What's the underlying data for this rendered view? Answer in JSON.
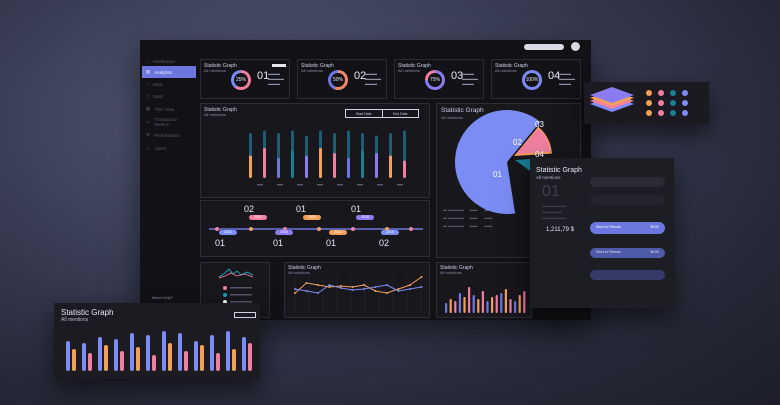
{
  "sidebar": {
    "items": [
      {
        "label": "Dashboard"
      },
      {
        "label": "Analytics"
      },
      {
        "label": "Data"
      },
      {
        "label": "Stats"
      },
      {
        "label": "TOP View"
      },
      {
        "label": "Transaction Metrics"
      },
      {
        "label": "Performance"
      },
      {
        "label": "Users"
      }
    ],
    "footer": "Need Help?"
  },
  "stat_cards": [
    {
      "title": "Statistic Graph",
      "sub": "All mentions",
      "percent": "25%",
      "num": "01",
      "color": "#f07fa0"
    },
    {
      "title": "Statistic Graph",
      "sub": "All mentions",
      "percent": "50%",
      "num": "02",
      "color": "#ef8a6a"
    },
    {
      "title": "Statistic Graph",
      "sub": "All mentions",
      "percent": "75%",
      "num": "03",
      "color": "#8a7cf0"
    },
    {
      "title": "Statistic Graph",
      "sub": "All mentions",
      "percent": "100%",
      "num": "04",
      "color": "#7b8cf5"
    }
  ],
  "bar_panel": {
    "title": "Statistic Graph",
    "sub": "All mentions",
    "btn_start": "Start Date",
    "btn_end": "End Date"
  },
  "timeline": {
    "top": [
      "02",
      "01",
      "01"
    ],
    "bottom": [
      "01",
      "01",
      "01",
      "02"
    ],
    "chips_top": [
      "2022",
      "2020",
      "2018"
    ],
    "chips_bottom": [
      "2024",
      "2016",
      "2014",
      "2010"
    ]
  },
  "pie_panel": {
    "title": "Statistic Graph",
    "sub": "All mentions",
    "labels": [
      "01",
      "02",
      "03",
      "04"
    ]
  },
  "line_panel": {
    "title": "Statistic Graph",
    "sub": "All mentions"
  },
  "small_bar_panel": {
    "title": "Statistic Graph",
    "sub": "All mentions"
  },
  "float_left": {
    "title": "Statistic Graph",
    "sub": "All mentions"
  },
  "float_right": {
    "title": "Statistic Graph",
    "sub": "All mentions",
    "big": "01",
    "amount": "1,211,79 $",
    "rows": [
      {
        "label": "",
        "value": ""
      },
      {
        "label": "Send to Friends",
        "value": "38.00"
      },
      {
        "label": "Send to Friends",
        "value": "38.00"
      },
      {
        "label": "Send to Friends",
        "value": "38.00"
      },
      {
        "label": "",
        "value": ""
      }
    ]
  },
  "colors": {
    "accent": "#6c78e0",
    "orange": "#f5a05a",
    "pink": "#f07fa0",
    "teal": "#1a7f95"
  }
}
